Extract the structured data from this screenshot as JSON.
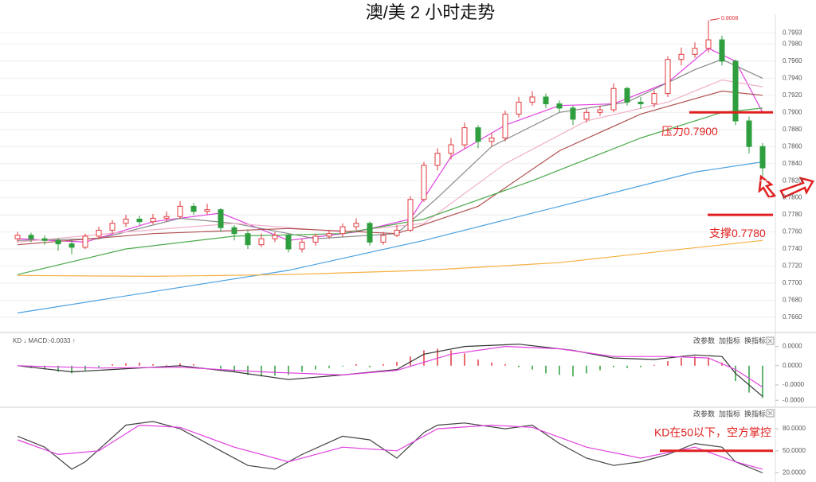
{
  "chart_data": [
    {
      "type": "candlestick",
      "title": "澳/美 2 小时走势",
      "up_color": "#e0393e",
      "down_color": "#2e9e3e",
      "grid": true,
      "ylim": [
        0.7645,
        0.8013
      ],
      "yticks": [
        {
          "value": 0.7993,
          "label": "0.7993"
        },
        {
          "value": 0.798,
          "label": "0.7980"
        },
        {
          "value": 0.796,
          "label": "0.7960"
        },
        {
          "value": 0.794,
          "label": "0.7940"
        },
        {
          "value": 0.792,
          "label": "0.7920"
        },
        {
          "value": 0.79,
          "label": "0.7900"
        },
        {
          "value": 0.788,
          "label": "0.7880"
        },
        {
          "value": 0.786,
          "label": "0.7860"
        },
        {
          "value": 0.784,
          "label": "0.7840"
        },
        {
          "value": 0.782,
          "label": "0.7820"
        },
        {
          "value": 0.78,
          "label": "0.7800"
        },
        {
          "value": 0.778,
          "label": "0.7780"
        },
        {
          "value": 0.776,
          "label": "0.7760"
        },
        {
          "value": 0.774,
          "label": "0.7740"
        },
        {
          "value": 0.772,
          "label": "0.7720"
        },
        {
          "value": 0.77,
          "label": "0.7700"
        },
        {
          "value": 0.768,
          "label": "0.7680"
        },
        {
          "value": 0.766,
          "label": "0.7660"
        }
      ],
      "open": [
        0.7752,
        0.7756,
        0.7752,
        0.775,
        0.7746,
        0.7742,
        0.7755,
        0.7762,
        0.777,
        0.7775,
        0.7772,
        0.7776,
        0.7778,
        0.779,
        0.7784,
        0.7786,
        0.7765,
        0.7758,
        0.7745,
        0.7752,
        0.7756,
        0.774,
        0.7748,
        0.7755,
        0.7758,
        0.7766,
        0.777,
        0.7748,
        0.7756,
        0.7762,
        0.7798,
        0.7838,
        0.7852,
        0.7862,
        0.7882,
        0.7866,
        0.787,
        0.7898,
        0.7912,
        0.7918,
        0.791,
        0.7905,
        0.7892,
        0.79,
        0.7903,
        0.7928,
        0.7912,
        0.791,
        0.7922,
        0.7962,
        0.7968,
        0.7975,
        0.7985,
        0.796,
        0.789,
        0.786
      ],
      "close": [
        0.7756,
        0.7752,
        0.775,
        0.7746,
        0.7742,
        0.7755,
        0.7762,
        0.777,
        0.7775,
        0.7772,
        0.7776,
        0.7778,
        0.779,
        0.7784,
        0.7786,
        0.7765,
        0.7758,
        0.7745,
        0.7752,
        0.7756,
        0.774,
        0.7748,
        0.7755,
        0.7758,
        0.7766,
        0.777,
        0.7748,
        0.7756,
        0.7762,
        0.7798,
        0.7838,
        0.7852,
        0.7862,
        0.7882,
        0.7866,
        0.787,
        0.7898,
        0.7912,
        0.7918,
        0.791,
        0.7905,
        0.7892,
        0.79,
        0.7903,
        0.7928,
        0.7912,
        0.791,
        0.7922,
        0.7962,
        0.7968,
        0.7975,
        0.7985,
        0.796,
        0.789,
        0.786,
        0.7835
      ],
      "high": [
        0.776,
        0.7759,
        0.7756,
        0.7753,
        0.775,
        0.7758,
        0.7766,
        0.7774,
        0.778,
        0.7779,
        0.7781,
        0.7784,
        0.7796,
        0.7794,
        0.7793,
        0.7788,
        0.7768,
        0.7762,
        0.7758,
        0.776,
        0.7758,
        0.7752,
        0.7758,
        0.7762,
        0.777,
        0.7776,
        0.7772,
        0.776,
        0.7768,
        0.7802,
        0.7842,
        0.7858,
        0.787,
        0.7888,
        0.7885,
        0.7876,
        0.7902,
        0.7918,
        0.7925,
        0.7922,
        0.7914,
        0.7908,
        0.7904,
        0.7908,
        0.7934,
        0.793,
        0.7918,
        0.7926,
        0.7966,
        0.7976,
        0.7982,
        0.8008,
        0.799,
        0.7962,
        0.7895,
        0.7864
      ],
      "low": [
        0.7748,
        0.7748,
        0.7745,
        0.7738,
        0.7734,
        0.774,
        0.7752,
        0.7758,
        0.7766,
        0.7768,
        0.7769,
        0.7772,
        0.7775,
        0.778,
        0.778,
        0.776,
        0.775,
        0.774,
        0.7742,
        0.7748,
        0.7736,
        0.7736,
        0.7744,
        0.7752,
        0.7754,
        0.7762,
        0.7744,
        0.7745,
        0.7754,
        0.776,
        0.7795,
        0.7832,
        0.7845,
        0.7858,
        0.7858,
        0.786,
        0.7866,
        0.7894,
        0.7908,
        0.7905,
        0.79,
        0.7885,
        0.7888,
        0.7896,
        0.79,
        0.7908,
        0.7904,
        0.7906,
        0.7918,
        0.7955,
        0.7964,
        0.797,
        0.7955,
        0.7885,
        0.7852,
        0.7825
      ],
      "high_label": "0.8008",
      "series": [
        {
          "color": "#e040e0",
          "x": [
            0,
            5,
            10,
            15,
            20,
            25,
            29,
            32,
            36,
            40,
            44,
            48,
            51,
            53,
            55
          ],
          "values": [
            0.7752,
            0.7748,
            0.7772,
            0.7782,
            0.775,
            0.776,
            0.7775,
            0.7848,
            0.7885,
            0.7908,
            0.791,
            0.7935,
            0.7975,
            0.796,
            0.79
          ]
        },
        {
          "color": "#888888",
          "x": [
            0,
            6,
            12,
            16,
            22,
            28,
            31,
            35,
            40,
            45,
            50,
            52,
            55
          ],
          "values": [
            0.775,
            0.7752,
            0.7776,
            0.777,
            0.7752,
            0.7758,
            0.78,
            0.786,
            0.79,
            0.7912,
            0.795,
            0.7962,
            0.794
          ]
        },
        {
          "color": "#f0b0c8",
          "x": [
            0,
            8,
            16,
            24,
            30,
            36,
            42,
            48,
            52,
            55
          ],
          "values": [
            0.7748,
            0.776,
            0.777,
            0.776,
            0.777,
            0.784,
            0.789,
            0.7912,
            0.7938,
            0.793
          ]
        },
        {
          "color": "#b05050",
          "x": [
            0,
            10,
            20,
            28,
            34,
            40,
            46,
            52,
            55
          ],
          "values": [
            0.7745,
            0.7758,
            0.7764,
            0.7758,
            0.779,
            0.7855,
            0.7898,
            0.7925,
            0.792
          ]
        },
        {
          "color": "#4caa4c",
          "x": [
            0,
            8,
            16,
            24,
            30,
            38,
            46,
            52,
            55
          ],
          "values": [
            0.771,
            0.774,
            0.7755,
            0.7758,
            0.7775,
            0.782,
            0.787,
            0.79,
            0.7905
          ]
        },
        {
          "color": "#4aa0e0",
          "x": [
            0,
            10,
            20,
            30,
            40,
            50,
            55
          ],
          "values": [
            0.7665,
            0.769,
            0.7715,
            0.775,
            0.779,
            0.783,
            0.7842
          ]
        },
        {
          "color": "#f5b041",
          "x": [
            0,
            10,
            20,
            30,
            40,
            48,
            55
          ],
          "values": [
            0.7709,
            0.7708,
            0.771,
            0.7715,
            0.7724,
            0.7738,
            0.775
          ]
        }
      ],
      "annotations": [
        {
          "text": "压力0.7900",
          "value": 0.79
        },
        {
          "text": "支撑0.7780",
          "value": 0.778
        }
      ]
    },
    {
      "type": "macd",
      "indicator_label": "KD ↓ MACD:-0.0033 ↑",
      "toolbar": [
        "改参数",
        "加指标",
        "换指标"
      ],
      "ylim": [
        -0.0052,
        0.0036
      ],
      "yticks": [
        {
          "value": 0.0025,
          "label": "0.0000"
        },
        {
          "value": 0,
          "label": "0.0000"
        },
        {
          "value": -0.0025,
          "label": "-0.0000"
        },
        {
          "value": -0.0045,
          "label": "-0.0000"
        }
      ],
      "up_color": "#e0393e",
      "down_color": "#2e9e3e",
      "histogram": [
        0,
        -0.0003,
        -0.0005,
        -0.0008,
        -0.001,
        -0.0006,
        -0.0002,
        0.0002,
        0.0003,
        0.0004,
        0.0002,
        0.0001,
        0.0003,
        0.0002,
        0,
        -0.0004,
        -0.0008,
        -0.0012,
        -0.0014,
        -0.0013,
        -0.0012,
        -0.0008,
        -0.0005,
        -0.0003,
        -0.0001,
        0.0002,
        -0.0002,
        0.0002,
        0.0005,
        0.0012,
        0.002,
        0.0022,
        0.002,
        0.0016,
        0.0008,
        0.0004,
        0.0002,
        -0.0002,
        -0.0005,
        -0.001,
        -0.0012,
        -0.0014,
        -0.001,
        -0.0006,
        -0.0002,
        -0.0003,
        -0.0002,
        0.0001,
        0.0006,
        0.001,
        0.0012,
        0.001,
        0.0004,
        -0.002,
        -0.0035,
        -0.0042
      ],
      "series": [
        {
          "color": "#333333",
          "x": [
            0,
            4,
            8,
            12,
            16,
            20,
            24,
            28,
            30,
            33,
            37,
            41,
            44,
            47,
            50,
            52,
            53,
            55
          ],
          "values": [
            0,
            -0.0008,
            -0.0004,
            0,
            -0.0008,
            -0.0018,
            -0.0012,
            -0.0005,
            0.0015,
            0.0025,
            0.0028,
            0.002,
            0.001,
            0.0008,
            0.0014,
            0.0012,
            -0.001,
            -0.004
          ]
        },
        {
          "color": "#e040e0",
          "x": [
            0,
            6,
            12,
            18,
            24,
            28,
            32,
            36,
            40,
            44,
            48,
            51,
            53,
            55
          ],
          "values": [
            0,
            -0.0003,
            -0.0002,
            -0.0008,
            -0.0012,
            -0.0006,
            0.0015,
            0.0025,
            0.0022,
            0.0012,
            0.0012,
            0.001,
            -0.0005,
            -0.0028
          ]
        }
      ]
    },
    {
      "type": "line",
      "toolbar": [
        "改参数",
        "加指标",
        "换指标"
      ],
      "ylim": [
        14,
        104
      ],
      "yticks": [
        {
          "value": 80,
          "label": "80.0000"
        },
        {
          "value": 50,
          "label": "50.0000"
        },
        {
          "value": 20,
          "label": "20.0000"
        }
      ],
      "series": [
        {
          "color": "#444444",
          "x": [
            0,
            2,
            4,
            5,
            8,
            10,
            12,
            15,
            17,
            19,
            21,
            24,
            26,
            28,
            30,
            31,
            33,
            36,
            38,
            40,
            42,
            44,
            46,
            47,
            48,
            50,
            52,
            53,
            55
          ],
          "values": [
            70,
            55,
            25,
            35,
            85,
            90,
            80,
            50,
            30,
            25,
            45,
            70,
            65,
            40,
            75,
            85,
            88,
            80,
            85,
            60,
            40,
            30,
            35,
            40,
            45,
            60,
            55,
            35,
            20
          ]
        },
        {
          "color": "#e040e0",
          "x": [
            0,
            3,
            6,
            9,
            12,
            16,
            20,
            24,
            28,
            31,
            35,
            38,
            42,
            46,
            50,
            53,
            55
          ],
          "values": [
            65,
            45,
            50,
            85,
            82,
            55,
            35,
            55,
            50,
            80,
            85,
            82,
            55,
            40,
            55,
            35,
            25
          ]
        }
      ],
      "annotations": [
        {
          "text": "KD在50以下，空方掌控",
          "value": 50
        }
      ]
    }
  ]
}
